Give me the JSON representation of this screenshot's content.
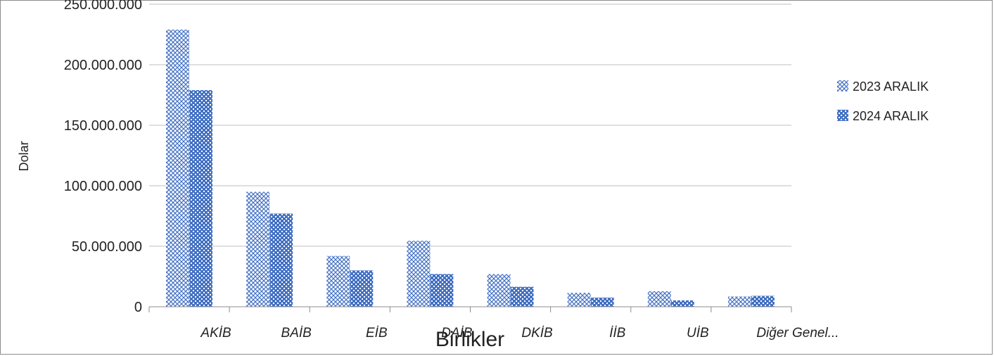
{
  "chart_data": {
    "type": "bar",
    "xlabel": "Birlikler",
    "ylabel": "Dolar",
    "categories": [
      "AKİB",
      "BAİB",
      "EİB",
      "DAİB",
      "DKİB",
      "İİB",
      "UİB",
      "Diğer Genel..."
    ],
    "series": [
      {
        "name": "2023 ARALIK",
        "values": [
          229000000,
          95000000,
          42000000,
          54500000,
          27000000,
          11500000,
          12800000,
          8500000
        ]
      },
      {
        "name": "2024 ARALIK",
        "values": [
          179000000,
          77000000,
          30000000,
          27000000,
          16500000,
          7500000,
          5300000,
          9000000
        ]
      }
    ],
    "ylim": [
      0,
      250000000
    ],
    "yticks": [
      0,
      50000000,
      100000000,
      150000000,
      200000000,
      250000000
    ],
    "ytick_labels": [
      "0",
      "50.000.000",
      "100.000.000",
      "150.000.000",
      "200.000.000",
      "250.000.000"
    ],
    "grid": true,
    "legend": "right",
    "colors": {
      "series_2023": "#4472C4",
      "series_2024": "#4472C4",
      "grid": "#bfbfbf",
      "axis": "#8c8c8c"
    }
  }
}
